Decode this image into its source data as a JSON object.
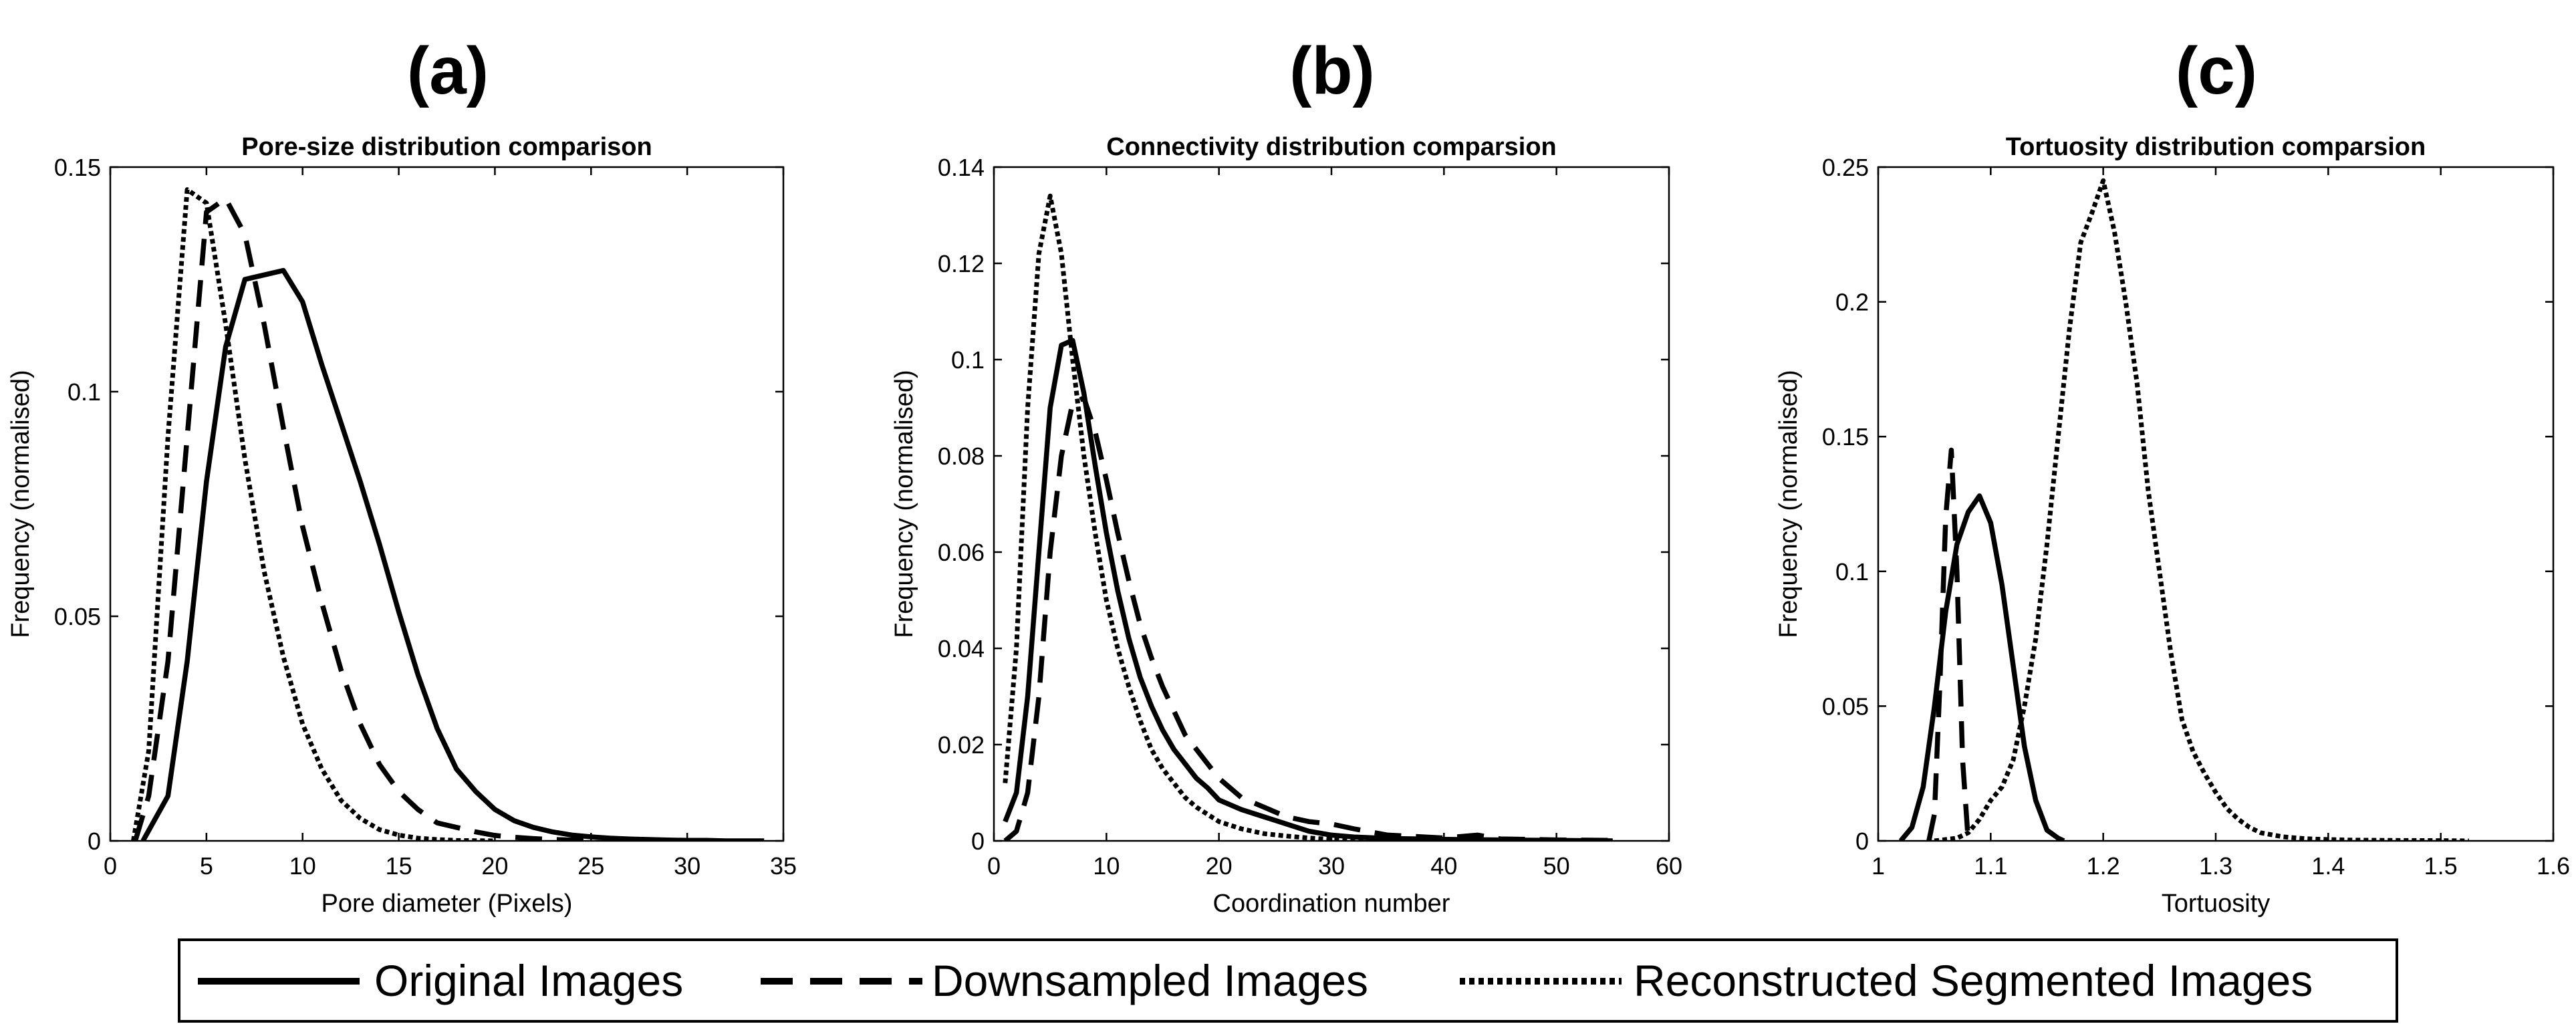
{
  "panel_letters": [
    "(a)",
    "(b)",
    "(c)"
  ],
  "legend": {
    "entries": [
      "Original Images",
      "Downsampled Images",
      "Reconstructed Segmented Images"
    ],
    "placement": "bottom-center"
  },
  "series_style": {
    "Original Images": "solid",
    "Downsampled Images": "dashed",
    "Reconstructed Segmented Images": "dotted"
  },
  "chart_data": [
    {
      "type": "line",
      "panel": "(a)",
      "title": "Pore-size distribution comparison",
      "xlabel": "Pore diameter (Pixels)",
      "ylabel": "Frequency (normalised)",
      "xlim": [
        0,
        35
      ],
      "ylim": [
        0,
        0.15
      ],
      "xticks": [
        0,
        5,
        10,
        15,
        20,
        25,
        30,
        35
      ],
      "xtick_labels": [
        "0",
        "5",
        "10",
        "15",
        "20",
        "25",
        "30",
        "35"
      ],
      "yticks": [
        0,
        0.05,
        0.1,
        0.15
      ],
      "ytick_labels": [
        "0",
        "0.05",
        "0.1",
        "0.15"
      ],
      "grid": false,
      "series": [
        {
          "name": "Original Images",
          "x": [
            1.7,
            3,
            4,
            5,
            6,
            7,
            8,
            9,
            10,
            11,
            12,
            13,
            14,
            15,
            16,
            17,
            18,
            19,
            20,
            21,
            22,
            23,
            24,
            25,
            26,
            27,
            28,
            29,
            30,
            31,
            32,
            33,
            34
          ],
          "y": [
            0,
            0.01,
            0.04,
            0.08,
            0.11,
            0.125,
            0.126,
            0.127,
            0.12,
            0.106,
            0.093,
            0.08,
            0.066,
            0.051,
            0.037,
            0.025,
            0.016,
            0.011,
            0.007,
            0.0045,
            0.003,
            0.002,
            0.0013,
            0.0009,
            0.0006,
            0.0004,
            0.0003,
            0.0002,
            0.0001,
            0.0001,
            0,
            0,
            0
          ]
        },
        {
          "name": "Downsampled Images",
          "x": [
            1.3,
            2,
            3,
            4,
            5,
            6,
            7,
            8,
            9,
            10,
            11,
            12,
            13,
            14,
            15,
            16,
            17,
            18,
            19,
            20,
            21,
            22,
            23,
            24,
            25
          ],
          "y": [
            0,
            0.01,
            0.04,
            0.09,
            0.14,
            0.143,
            0.135,
            0.115,
            0.092,
            0.07,
            0.053,
            0.038,
            0.026,
            0.017,
            0.011,
            0.007,
            0.004,
            0.003,
            0.002,
            0.0012,
            0.0008,
            0.0005,
            0.0003,
            0.0002,
            0.0001
          ]
        },
        {
          "name": "Reconstructed Segmented Images",
          "x": [
            1.2,
            2,
            3,
            4,
            5,
            6,
            7,
            8,
            9,
            10,
            11,
            12,
            13,
            14,
            15,
            16,
            17,
            18,
            19,
            20
          ],
          "y": [
            0,
            0.02,
            0.09,
            0.145,
            0.142,
            0.115,
            0.085,
            0.06,
            0.041,
            0.026,
            0.016,
            0.009,
            0.005,
            0.0025,
            0.0013,
            0.0006,
            0.0003,
            0.0001,
            5e-05,
            0
          ]
        }
      ]
    },
    {
      "type": "line",
      "panel": "(b)",
      "title": "Connectivity distribution comparsion",
      "xlabel": "Coordination number",
      "ylabel": "Frequency (normalised)",
      "xlim": [
        0,
        60
      ],
      "ylim": [
        0,
        0.14
      ],
      "xticks": [
        0,
        10,
        20,
        30,
        40,
        50,
        60
      ],
      "xtick_labels": [
        "0",
        "10",
        "20",
        "30",
        "40",
        "50",
        "60"
      ],
      "yticks": [
        0,
        0.02,
        0.04,
        0.06,
        0.08,
        0.1,
        0.12,
        0.14
      ],
      "ytick_labels": [
        "0",
        "0.02",
        "0.04",
        "0.06",
        "0.08",
        "0.1",
        "0.12",
        "0.14"
      ],
      "grid": false,
      "series": [
        {
          "name": "Original Images",
          "x": [
            1,
            2,
            3,
            4,
            5,
            6,
            7,
            8,
            9,
            10,
            11,
            12,
            13,
            14,
            15,
            16,
            17,
            18,
            19,
            20,
            22,
            24,
            26,
            28,
            30,
            32,
            35,
            40,
            45,
            50,
            55
          ],
          "y": [
            0.004,
            0.01,
            0.03,
            0.06,
            0.09,
            0.103,
            0.104,
            0.093,
            0.078,
            0.064,
            0.052,
            0.042,
            0.034,
            0.028,
            0.023,
            0.019,
            0.016,
            0.013,
            0.011,
            0.0085,
            0.0065,
            0.005,
            0.0035,
            0.002,
            0.0012,
            0.0008,
            0.0005,
            0.0003,
            0.0002,
            0.0001,
            0
          ]
        },
        {
          "name": "Downsampled Images",
          "x": [
            1,
            2,
            3,
            4,
            5,
            6,
            7,
            8,
            9,
            10,
            11,
            12,
            13,
            14,
            15,
            16,
            17,
            18,
            19,
            20,
            22,
            24,
            26,
            28,
            30,
            32,
            35,
            40,
            43,
            45,
            50,
            55
          ],
          "y": [
            0,
            0.002,
            0.01,
            0.03,
            0.06,
            0.08,
            0.091,
            0.092,
            0.085,
            0.075,
            0.064,
            0.054,
            0.045,
            0.038,
            0.032,
            0.027,
            0.022,
            0.019,
            0.016,
            0.013,
            0.009,
            0.007,
            0.005,
            0.004,
            0.0035,
            0.0025,
            0.0012,
            0.0006,
            0.0012,
            0.0004,
            0.0002,
            0.0001
          ]
        },
        {
          "name": "Reconstructed Segmented Images",
          "x": [
            1,
            2,
            3,
            4,
            5,
            6,
            7,
            8,
            9,
            10,
            11,
            12,
            13,
            14,
            15,
            16,
            17,
            18,
            19,
            20,
            22,
            24,
            26,
            28,
            30,
            32,
            35,
            40
          ],
          "y": [
            0.012,
            0.04,
            0.09,
            0.122,
            0.134,
            0.122,
            0.1,
            0.08,
            0.064,
            0.05,
            0.04,
            0.032,
            0.025,
            0.019,
            0.015,
            0.012,
            0.009,
            0.007,
            0.0055,
            0.004,
            0.0025,
            0.0015,
            0.001,
            0.0006,
            0.0003,
            0.0002,
            0.0001,
            0
          ]
        }
      ]
    },
    {
      "type": "line",
      "panel": "(c)",
      "title": "Tortuosity distribution comparsion",
      "xlabel": "Tortuosity",
      "ylabel": "Frequency (normalised)",
      "xlim": [
        1,
        1.6
      ],
      "ylim": [
        0,
        0.25
      ],
      "xticks": [
        1,
        1.1,
        1.2,
        1.3,
        1.4,
        1.5,
        1.6
      ],
      "xtick_labels": [
        "1",
        "1.1",
        "1.2",
        "1.3",
        "1.4",
        "1.5",
        "1.6"
      ],
      "yticks": [
        0,
        0.05,
        0.1,
        0.15,
        0.2,
        0.25
      ],
      "ytick_labels": [
        "0",
        "0.05",
        "0.1",
        "0.15",
        "0.2",
        "0.25"
      ],
      "grid": false,
      "series": [
        {
          "name": "Original Images",
          "x": [
            1.02,
            1.03,
            1.04,
            1.05,
            1.06,
            1.07,
            1.08,
            1.09,
            1.1,
            1.11,
            1.12,
            1.13,
            1.14,
            1.15,
            1.16,
            1.165
          ],
          "y": [
            0,
            0.005,
            0.02,
            0.05,
            0.085,
            0.11,
            0.122,
            0.128,
            0.118,
            0.095,
            0.065,
            0.035,
            0.015,
            0.004,
            0.001,
            0
          ]
        },
        {
          "name": "Downsampled Images",
          "x": [
            1.045,
            1.05,
            1.055,
            1.06,
            1.065,
            1.07,
            1.075,
            1.08
          ],
          "y": [
            0,
            0.01,
            0.06,
            0.12,
            0.145,
            0.1,
            0.03,
            0
          ]
        },
        {
          "name": "Reconstructed Segmented Images",
          "x": [
            1.05,
            1.07,
            1.08,
            1.09,
            1.1,
            1.11,
            1.12,
            1.13,
            1.14,
            1.15,
            1.16,
            1.17,
            1.18,
            1.19,
            1.2,
            1.21,
            1.22,
            1.23,
            1.24,
            1.25,
            1.26,
            1.27,
            1.28,
            1.29,
            1.3,
            1.31,
            1.32,
            1.33,
            1.34,
            1.36,
            1.38,
            1.4,
            1.42,
            1.45,
            1.5,
            1.525
          ],
          "y": [
            0,
            0.001,
            0.003,
            0.008,
            0.015,
            0.02,
            0.03,
            0.05,
            0.075,
            0.11,
            0.15,
            0.19,
            0.222,
            0.233,
            0.245,
            0.226,
            0.2,
            0.17,
            0.13,
            0.1,
            0.07,
            0.045,
            0.033,
            0.025,
            0.018,
            0.012,
            0.008,
            0.005,
            0.003,
            0.0015,
            0.0008,
            0.0005,
            0.0003,
            0.0002,
            0.0001,
            0
          ]
        }
      ]
    }
  ]
}
